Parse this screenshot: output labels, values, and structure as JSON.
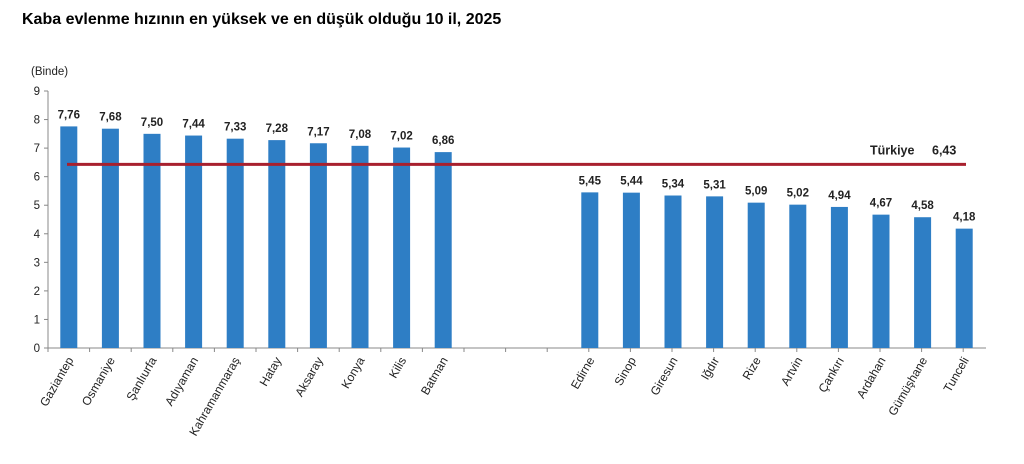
{
  "chart_data": {
    "type": "bar",
    "title": "Kaba evlenme hızının en yüksek ve en düşük olduğu 10 il, 2025",
    "unit_label": "(Binde)",
    "ylim": [
      0,
      9
    ],
    "yticks": [
      "0",
      "1",
      "2",
      "3",
      "4",
      "5",
      "6",
      "7",
      "8",
      "9"
    ],
    "grid": false,
    "bar_color": "#2E7EC5",
    "reference_line": {
      "label": "Türkiye",
      "value": 6.43,
      "value_label": "6,43",
      "color": "#A8202E"
    },
    "groups": [
      {
        "categories": [
          "Gaziantep",
          "Osmaniye",
          "Şanlıurfa",
          "Adıyaman",
          "Kahramanmaraş",
          "Hatay",
          "Aksaray",
          "Konya",
          "Kilis",
          "Batman"
        ],
        "values": [
          7.76,
          7.68,
          7.5,
          7.44,
          7.33,
          7.28,
          7.17,
          7.08,
          7.02,
          6.86
        ],
        "value_labels": [
          "7,76",
          "7,68",
          "7,50",
          "7,44",
          "7,33",
          "7,28",
          "7,17",
          "7,08",
          "7,02",
          "6,86"
        ]
      },
      {
        "categories": [
          "Edirne",
          "Sinop",
          "Giresun",
          "Iğdır",
          "Rize",
          "Artvin",
          "Çankırı",
          "Ardahan",
          "Gümüşhane",
          "Tunceli"
        ],
        "values": [
          5.45,
          5.44,
          5.34,
          5.31,
          5.09,
          5.02,
          4.94,
          4.67,
          4.58,
          4.18
        ],
        "value_labels": [
          "5,45",
          "5,44",
          "5,34",
          "5,31",
          "5,09",
          "5,02",
          "4,94",
          "4,67",
          "4,58",
          "4,18"
        ]
      }
    ]
  }
}
